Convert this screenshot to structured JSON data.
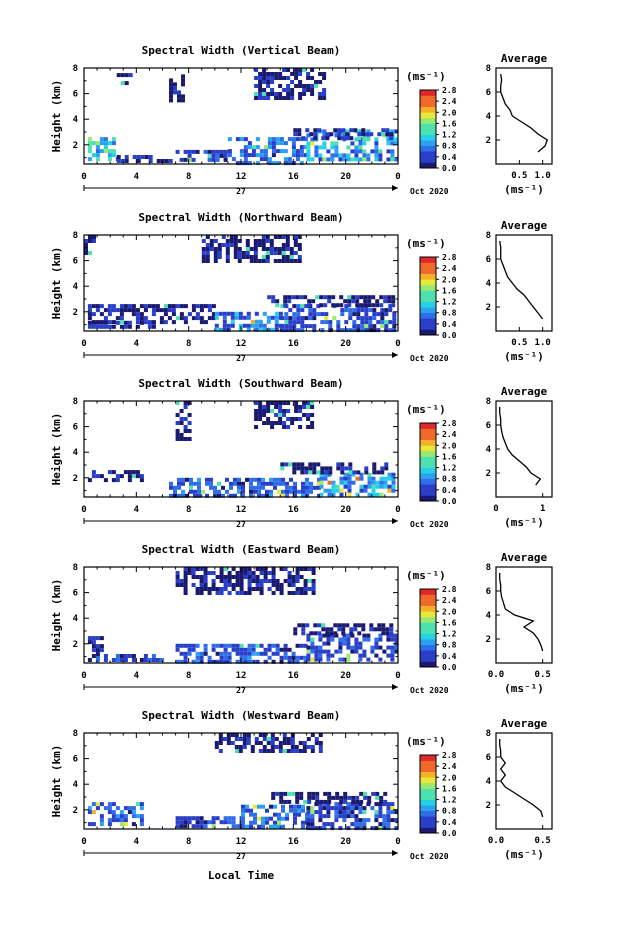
{
  "figure": {
    "xlabel": "Local Time",
    "day_label": "27",
    "date_label": "Oct 2020"
  },
  "chart_data": [
    {
      "type": "heatmap",
      "title": "Spectral Width (Vertical Beam)",
      "ylabel": "Height (km)",
      "xlim": [
        0,
        24
      ],
      "ylim": [
        0.5,
        8
      ],
      "xticks": [
        "0",
        "4",
        "8",
        "12",
        "16",
        "20",
        "0"
      ],
      "yticks": [
        "2",
        "4",
        "6",
        "8"
      ],
      "colorbar": {
        "unit": "(ms⁻¹)",
        "ticks": [
          "0.0",
          "0.4",
          "0.8",
          "1.2",
          "1.6",
          "2.0",
          "2.4",
          "2.8"
        ],
        "range": [
          0,
          2.8
        ]
      },
      "average": {
        "title": "Average",
        "xlabel": "(ms⁻¹)",
        "xticks": [
          "0.5",
          "1.0"
        ],
        "xlim": [
          0,
          1.2
        ],
        "ylim": [
          0,
          8
        ],
        "yticks": [
          "2",
          "4",
          "6",
          "8"
        ],
        "profile": [
          [
            1.0,
            0.9
          ],
          [
            1.5,
            1.05
          ],
          [
            2.0,
            1.1
          ],
          [
            2.5,
            0.9
          ],
          [
            3.0,
            0.75
          ],
          [
            3.5,
            0.55
          ],
          [
            4.0,
            0.35
          ],
          [
            4.5,
            0.3
          ],
          [
            5.0,
            0.2
          ],
          [
            5.5,
            0.15
          ],
          [
            6.0,
            0.1
          ],
          [
            6.5,
            0.1
          ],
          [
            7.0,
            0.12
          ],
          [
            7.5,
            0.1
          ]
        ]
      },
      "blobs": [
        {
          "x0": 0.3,
          "x1": 2.5,
          "y0": 0.8,
          "y1": 2.6,
          "v": 1.1
        },
        {
          "x0": 2.5,
          "x1": 6.5,
          "y0": 0.7,
          "y1": 1.2,
          "v": 0.3
        },
        {
          "x0": 7.0,
          "x1": 11.0,
          "y0": 0.7,
          "y1": 1.6,
          "v": 0.4
        },
        {
          "x0": 11.0,
          "x1": 17.0,
          "y0": 0.7,
          "y1": 2.6,
          "v": 0.6
        },
        {
          "x0": 17.0,
          "x1": 23.8,
          "y0": 0.7,
          "y1": 3.2,
          "v": 0.9
        },
        {
          "x0": 16.0,
          "x1": 23.5,
          "y0": 2.5,
          "y1": 3.3,
          "v": 0.3
        },
        {
          "x0": 13.0,
          "x1": 18.5,
          "y0": 5.5,
          "y1": 8.0,
          "v": 0.2
        },
        {
          "x0": 2.5,
          "x1": 3.5,
          "y0": 6.8,
          "y1": 7.6,
          "v": 0.2
        },
        {
          "x0": 6.5,
          "x1": 7.5,
          "y0": 5.5,
          "y1": 7.5,
          "v": 0.2
        }
      ]
    },
    {
      "type": "heatmap",
      "title": "Spectral Width (Northward Beam)",
      "ylabel": "Height (km)",
      "xlim": [
        0,
        24
      ],
      "ylim": [
        0.5,
        8
      ],
      "xticks": [
        "0",
        "4",
        "8",
        "12",
        "16",
        "20",
        "0"
      ],
      "yticks": [
        "2",
        "4",
        "6",
        "8"
      ],
      "colorbar": {
        "unit": "(ms⁻¹)",
        "ticks": [
          "0.0",
          "0.4",
          "0.8",
          "1.2",
          "1.6",
          "2.0",
          "2.4",
          "2.8"
        ],
        "range": [
          0,
          2.8
        ]
      },
      "average": {
        "title": "Average",
        "xlabel": "(ms⁻¹)",
        "xticks": [
          "0.5",
          "1.0"
        ],
        "xlim": [
          0,
          1.2
        ],
        "ylim": [
          0,
          8
        ],
        "yticks": [
          "2",
          "4",
          "6",
          "8"
        ],
        "profile": [
          [
            1.0,
            1.0
          ],
          [
            1.5,
            0.9
          ],
          [
            2.0,
            0.8
          ],
          [
            2.5,
            0.7
          ],
          [
            3.0,
            0.6
          ],
          [
            3.5,
            0.45
          ],
          [
            4.0,
            0.35
          ],
          [
            4.5,
            0.25
          ],
          [
            5.0,
            0.2
          ],
          [
            5.5,
            0.15
          ],
          [
            6.0,
            0.1
          ],
          [
            6.5,
            0.1
          ],
          [
            7.0,
            0.1
          ],
          [
            7.5,
            0.08
          ]
        ]
      },
      "blobs": [
        {
          "x0": 0.3,
          "x1": 5.5,
          "y0": 0.7,
          "y1": 1.3,
          "v": 0.3
        },
        {
          "x0": 0.3,
          "x1": 10.0,
          "y0": 1.3,
          "y1": 2.6,
          "v": 0.2
        },
        {
          "x0": 10.0,
          "x1": 15.0,
          "y0": 0.7,
          "y1": 2.0,
          "v": 0.7
        },
        {
          "x0": 15.0,
          "x1": 23.8,
          "y0": 0.7,
          "y1": 2.6,
          "v": 0.4
        },
        {
          "x0": 14.0,
          "x1": 23.5,
          "y0": 2.6,
          "y1": 3.3,
          "v": 0.2
        },
        {
          "x0": 9.0,
          "x1": 16.5,
          "y0": 6.0,
          "y1": 8.0,
          "v": 0.2
        },
        {
          "x0": 0.0,
          "x1": 0.8,
          "y0": 6.5,
          "y1": 8.0,
          "v": 0.2
        }
      ]
    },
    {
      "type": "heatmap",
      "title": "Spectral Width (Southward Beam)",
      "ylabel": "Height (km)",
      "xlim": [
        0,
        24
      ],
      "ylim": [
        0.5,
        8
      ],
      "xticks": [
        "0",
        "4",
        "8",
        "12",
        "16",
        "20",
        "0"
      ],
      "yticks": [
        "2",
        "4",
        "6",
        "8"
      ],
      "colorbar": {
        "unit": "(ms⁻¹)",
        "ticks": [
          "0.0",
          "0.4",
          "0.8",
          "1.2",
          "1.6",
          "2.0",
          "2.4",
          "2.8"
        ],
        "range": [
          0,
          2.8
        ]
      },
      "average": {
        "title": "Average",
        "xlabel": "(ms⁻¹)",
        "xticks": [
          "0",
          "1"
        ],
        "xlim": [
          0,
          1.2
        ],
        "ylim": [
          0,
          8
        ],
        "yticks": [
          "2",
          "4",
          "6",
          "8"
        ],
        "profile": [
          [
            1.0,
            0.85
          ],
          [
            1.5,
            0.95
          ],
          [
            2.0,
            0.75
          ],
          [
            2.5,
            0.65
          ],
          [
            3.0,
            0.5
          ],
          [
            3.5,
            0.35
          ],
          [
            4.0,
            0.25
          ],
          [
            4.5,
            0.2
          ],
          [
            5.0,
            0.15
          ],
          [
            5.5,
            0.12
          ],
          [
            6.0,
            0.1
          ],
          [
            6.5,
            0.1
          ],
          [
            7.0,
            0.08
          ],
          [
            7.5,
            0.08
          ]
        ]
      },
      "blobs": [
        {
          "x0": 0.3,
          "x1": 4.5,
          "y0": 1.8,
          "y1": 2.6,
          "v": 0.2
        },
        {
          "x0": 6.5,
          "x1": 18.0,
          "y0": 0.7,
          "y1": 2.0,
          "v": 0.5
        },
        {
          "x0": 18.0,
          "x1": 23.8,
          "y0": 0.7,
          "y1": 2.4,
          "v": 0.8
        },
        {
          "x0": 15.0,
          "x1": 23.0,
          "y0": 2.4,
          "y1": 3.2,
          "v": 0.2
        },
        {
          "x0": 7.0,
          "x1": 8.0,
          "y0": 5.0,
          "y1": 8.0,
          "v": 0.2
        },
        {
          "x0": 13.0,
          "x1": 17.5,
          "y0": 6.0,
          "y1": 8.0,
          "v": 0.2
        }
      ]
    },
    {
      "type": "heatmap",
      "title": "Spectral Width (Eastward Beam)",
      "ylabel": "Height (km)",
      "xlim": [
        0,
        24
      ],
      "ylim": [
        0.5,
        8
      ],
      "xticks": [
        "0",
        "4",
        "8",
        "12",
        "16",
        "20",
        "0"
      ],
      "yticks": [
        "2",
        "4",
        "6",
        "8"
      ],
      "colorbar": {
        "unit": "(ms⁻¹)",
        "ticks": [
          "0.0",
          "0.4",
          "0.8",
          "1.2",
          "1.6",
          "2.0",
          "2.4",
          "2.8"
        ],
        "range": [
          0,
          2.8
        ]
      },
      "average": {
        "title": "Average",
        "xlabel": "(ms⁻¹)",
        "xticks": [
          "0.0",
          "0.5"
        ],
        "xlim": [
          0,
          0.6
        ],
        "ylim": [
          0,
          8
        ],
        "yticks": [
          "2",
          "4",
          "6",
          "8"
        ],
        "profile": [
          [
            1.0,
            0.5
          ],
          [
            1.5,
            0.48
          ],
          [
            2.0,
            0.45
          ],
          [
            2.5,
            0.4
          ],
          [
            3.0,
            0.3
          ],
          [
            3.5,
            0.4
          ],
          [
            4.0,
            0.2
          ],
          [
            4.5,
            0.1
          ],
          [
            5.0,
            0.08
          ],
          [
            5.5,
            0.06
          ],
          [
            6.0,
            0.05
          ],
          [
            6.5,
            0.05
          ],
          [
            7.0,
            0.04
          ],
          [
            7.5,
            0.04
          ]
        ]
      },
      "blobs": [
        {
          "x0": 0.3,
          "x1": 6.0,
          "y0": 0.7,
          "y1": 1.2,
          "v": 0.4
        },
        {
          "x0": 0.3,
          "x1": 1.5,
          "y0": 1.2,
          "y1": 2.6,
          "v": 0.2
        },
        {
          "x0": 7.0,
          "x1": 17.0,
          "y0": 0.7,
          "y1": 2.0,
          "v": 0.5
        },
        {
          "x0": 17.0,
          "x1": 23.8,
          "y0": 0.7,
          "y1": 2.8,
          "v": 0.4
        },
        {
          "x0": 16.0,
          "x1": 23.5,
          "y0": 2.8,
          "y1": 3.6,
          "v": 0.2
        },
        {
          "x0": 7.0,
          "x1": 17.5,
          "y0": 6.0,
          "y1": 8.0,
          "v": 0.2
        }
      ]
    },
    {
      "type": "heatmap",
      "title": "Spectral Width (Westward Beam)",
      "ylabel": "Height (km)",
      "xlim": [
        0,
        24
      ],
      "ylim": [
        0.5,
        8
      ],
      "xticks": [
        "0",
        "4",
        "8",
        "12",
        "16",
        "20",
        "0"
      ],
      "yticks": [
        "2",
        "4",
        "6",
        "8"
      ],
      "colorbar": {
        "unit": "(ms⁻¹)",
        "ticks": [
          "0.0",
          "0.4",
          "0.8",
          "1.2",
          "1.6",
          "2.0",
          "2.4",
          "2.8"
        ],
        "range": [
          0,
          2.8
        ]
      },
      "average": {
        "title": "Average",
        "xlabel": "(ms⁻¹)",
        "xticks": [
          "0.0",
          "0.5"
        ],
        "xlim": [
          0,
          0.6
        ],
        "ylim": [
          0,
          8
        ],
        "yticks": [
          "2",
          "4",
          "6",
          "8"
        ],
        "profile": [
          [
            1.0,
            0.5
          ],
          [
            1.5,
            0.48
          ],
          [
            2.0,
            0.4
          ],
          [
            2.5,
            0.3
          ],
          [
            3.0,
            0.2
          ],
          [
            3.5,
            0.1
          ],
          [
            4.0,
            0.05
          ],
          [
            4.5,
            0.1
          ],
          [
            5.0,
            0.05
          ],
          [
            5.5,
            0.1
          ],
          [
            6.0,
            0.05
          ],
          [
            6.5,
            0.05
          ],
          [
            7.0,
            0.04
          ],
          [
            7.5,
            0.04
          ]
        ]
      },
      "blobs": [
        {
          "x0": 0.3,
          "x1": 4.5,
          "y0": 0.8,
          "y1": 2.6,
          "v": 0.6
        },
        {
          "x0": 7.0,
          "x1": 12.0,
          "y0": 0.7,
          "y1": 1.5,
          "v": 0.4
        },
        {
          "x0": 12.0,
          "x1": 17.0,
          "y0": 0.7,
          "y1": 2.4,
          "v": 0.6
        },
        {
          "x0": 17.0,
          "x1": 23.8,
          "y0": 0.7,
          "y1": 2.6,
          "v": 0.4
        },
        {
          "x0": 14.0,
          "x1": 23.0,
          "y0": 2.6,
          "y1": 3.4,
          "v": 0.2
        },
        {
          "x0": 10.0,
          "x1": 18.0,
          "y0": 6.5,
          "y1": 8.0,
          "v": 0.2
        }
      ]
    }
  ]
}
